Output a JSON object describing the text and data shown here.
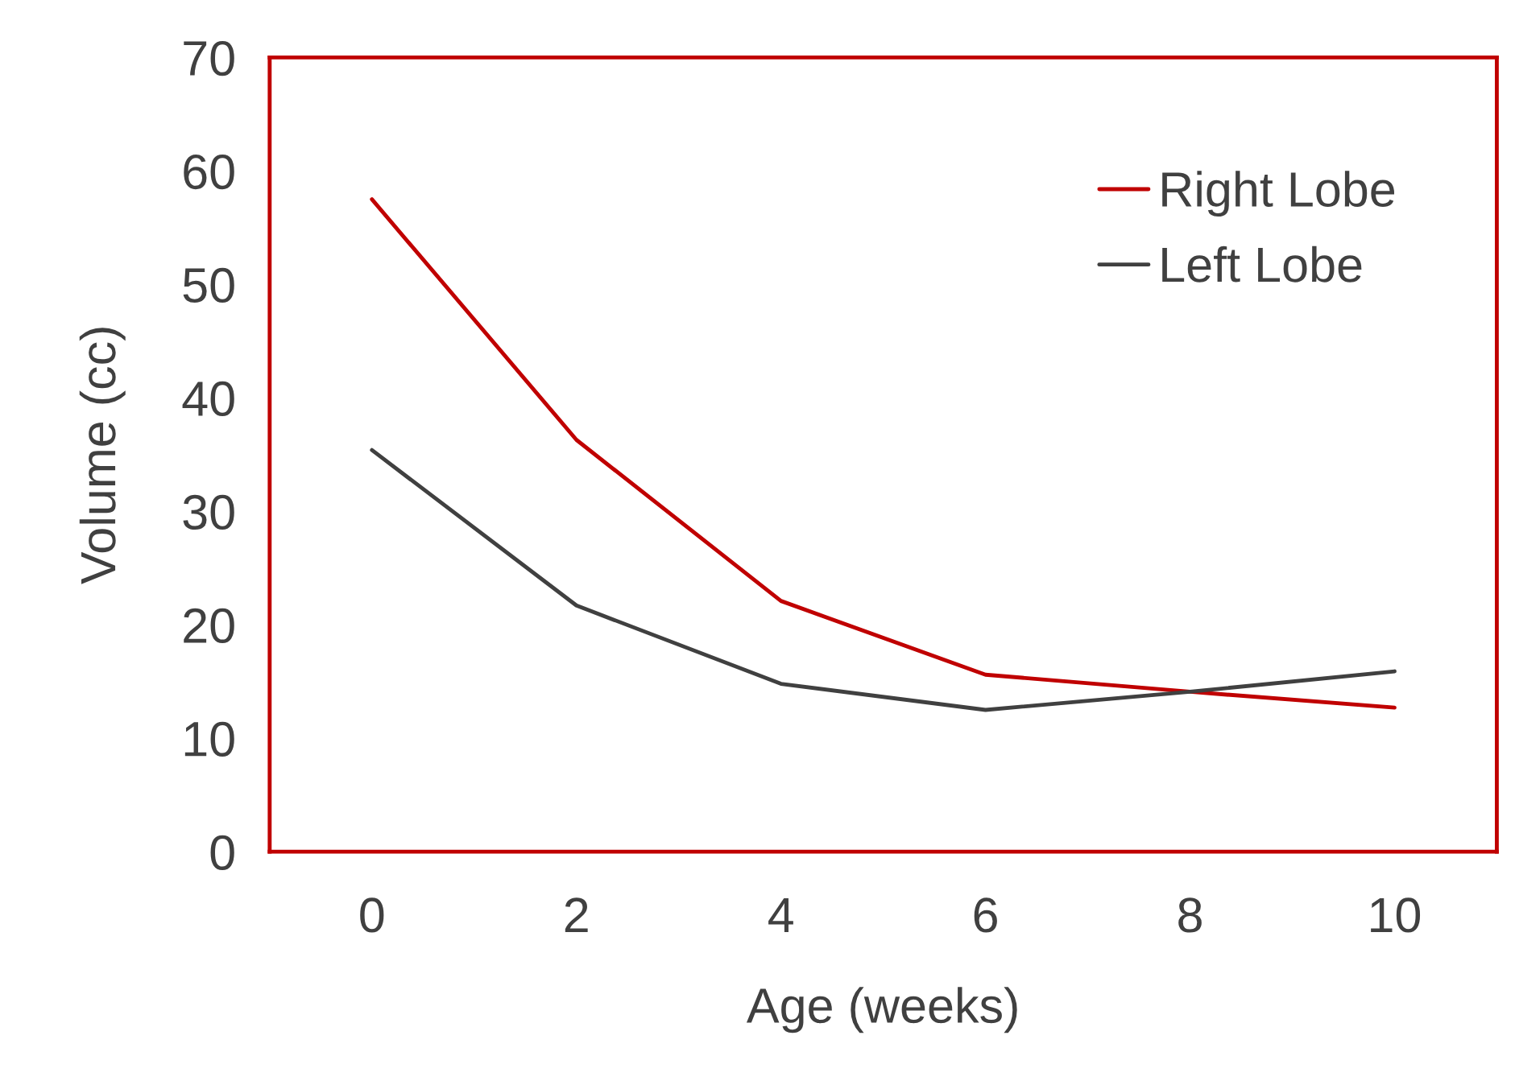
{
  "chart_data": {
    "type": "line",
    "xlabel": "Age (weeks)",
    "ylabel": "Volume (cc)",
    "x": [
      0,
      2,
      4,
      6,
      8,
      10
    ],
    "series": [
      {
        "name": "Right Lobe",
        "color": "#c00000",
        "values": [
          57.5,
          36.3,
          22.1,
          15.6,
          14.1,
          12.7
        ]
      },
      {
        "name": "Left Lobe",
        "color": "#404040",
        "values": [
          35.4,
          21.7,
          14.8,
          12.5,
          14.1,
          15.9
        ]
      }
    ],
    "xlim": [
      -1,
      11
    ],
    "ylim": [
      0,
      70
    ],
    "xticks": [
      0,
      2,
      4,
      6,
      8,
      10
    ],
    "yticks": [
      0,
      10,
      20,
      30,
      40,
      50,
      60,
      70
    ],
    "grid": false,
    "legend": "top right",
    "marker": "none",
    "line_style": "solid"
  }
}
